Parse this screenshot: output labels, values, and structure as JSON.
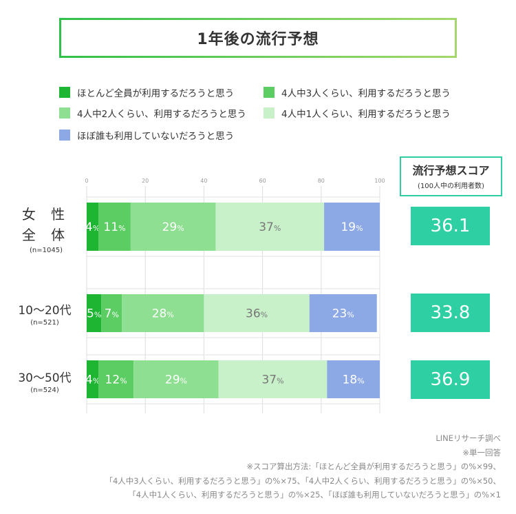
{
  "title": "1年後の流行予想",
  "legend": [
    {
      "label": "ほとんど全員が利用するだろうと思う",
      "color": "#1db532"
    },
    {
      "label": "4人中3人くらい、利用するだろうと思う",
      "color": "#5ccd63"
    },
    {
      "label": "4人中2人くらい、利用するだろうと思う",
      "color": "#8edf91"
    },
    {
      "label": "4人中1人くらい、利用するだろうと思う",
      "color": "#c8f0c9"
    },
    {
      "label": "ほぼ誰も利用していないだろうと思う",
      "color": "#8da9e5"
    }
  ],
  "score_header": {
    "title": "流行予想スコア",
    "subtitle": "(100人中の利用者数)"
  },
  "rows": [
    {
      "label": "女性全体",
      "label_line1": "女 性",
      "label_line2": "全 体",
      "n": "(n=1045)",
      "score": "36.1"
    },
    {
      "label": "10～20代",
      "n": "(n=521)",
      "score": "33.8"
    },
    {
      "label": "30～50代",
      "n": "(n=524)",
      "score": "36.9"
    }
  ],
  "chart_data": {
    "type": "bar",
    "orientation": "horizontal",
    "stacked": true,
    "unit": "%",
    "categories": [
      "女性全体",
      "10～20代",
      "30～50代"
    ],
    "xlim": [
      0,
      100
    ],
    "ticks": [
      0,
      20,
      40,
      60,
      80,
      100
    ],
    "series": [
      {
        "name": "ほとんど全員が利用するだろうと思う",
        "values": [
          4,
          5,
          4
        ],
        "color": "#1db532",
        "label_color": "#ffffff"
      },
      {
        "name": "4人中3人くらい、利用するだろうと思う",
        "values": [
          11,
          7,
          12
        ],
        "color": "#5ccd63",
        "label_color": "#ffffff"
      },
      {
        "name": "4人中2人くらい、利用するだろうと思う",
        "values": [
          29,
          28,
          29
        ],
        "color": "#8edf91",
        "label_color": "#ffffff"
      },
      {
        "name": "4人中1人くらい、利用するだろうと思う",
        "values": [
          37,
          36,
          37
        ],
        "color": "#c8f0c9",
        "label_color": "#777777"
      },
      {
        "name": "ほぼ誰も利用していないだろうと思う",
        "values": [
          19,
          23,
          18
        ],
        "color": "#8da9e5",
        "label_color": "#ffffff"
      }
    ]
  },
  "footer": {
    "source": "LINEリサーチ調べ",
    "note": "※単一回答",
    "method1": "※スコア算出方法:「ほとんど全員が利用するだろうと思う」の%×99、",
    "method2": "「4人中3人くらい、利用するだろうと思う」の%×75、「4人中2人くらい、利用するだろうと思う」の%×50、",
    "method3": "「4人中1人くらい、利用するだろうと思う」の%×25、「ほぼ誰も利用していないだろうと思う」の%×1"
  }
}
